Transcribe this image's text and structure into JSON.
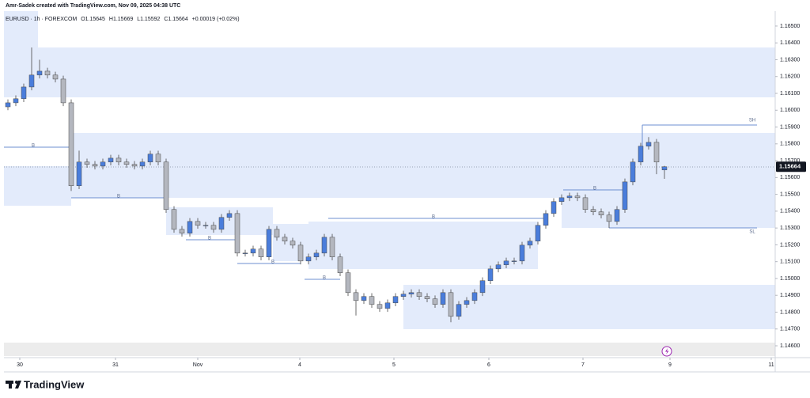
{
  "header": {
    "credit": "Amr-Sadek created with TradingView.com, Nov 09, 2025 04:38 UTC"
  },
  "footer": {
    "brand": "TradingView"
  },
  "chart_data": {
    "type": "candlestick",
    "legend": {
      "symbol": "EURUSD · 1h · FOREXCOM",
      "open": "O1.15645",
      "high": "H1.15669",
      "low": "L1.15592",
      "close": "C1.15664",
      "change": "+0.00019 (+0.02%)"
    },
    "up_color": "#4a7ddb",
    "down_color": "#b4b7bf",
    "outline_color": "#4a4a4a",
    "open": [
      1.1602,
      1.16044,
      1.16068,
      1.16138,
      1.16209,
      1.16232,
      1.16209,
      1.16185,
      1.16044,
      1.15551,
      1.15692,
      1.15678,
      1.15668,
      1.15692,
      1.15715,
      1.15692,
      1.15678,
      1.15668,
      1.15692,
      1.15739,
      1.15692,
      1.1541,
      1.15292,
      1.15269,
      1.15339,
      1.15316,
      1.15316,
      1.15292,
      1.15363,
      1.15386,
      1.15151,
      1.15151,
      1.15175,
      1.15128,
      1.15292,
      1.15245,
      1.15222,
      1.15198,
      1.15104,
      1.15128,
      1.15151,
      1.15245,
      1.15128,
      1.15034,
      1.14916,
      1.14869,
      1.14893,
      1.14846,
      1.14822,
      1.14855,
      1.14893,
      1.14907,
      1.14916,
      1.14893,
      1.14879,
      1.14846,
      1.14916,
      1.14775,
      1.14846,
      1.14869,
      1.14916,
      1.14987,
      1.15057,
      1.15081,
      1.15104,
      1.15104,
      1.15198,
      1.15222,
      1.15316,
      1.15386,
      1.15457,
      1.1548,
      1.1549,
      1.1548,
      1.1541,
      1.15396,
      1.15377,
      1.15339,
      1.1541,
      1.15574,
      1.15692,
      1.15786,
      1.15809,
      1.15645
    ],
    "high": [
      1.16064,
      1.16088,
      1.16158,
      1.16373,
      1.163,
      1.16252,
      1.16229,
      1.16205,
      1.16064,
      1.1576,
      1.15712,
      1.15698,
      1.15712,
      1.15735,
      1.15735,
      1.15712,
      1.15698,
      1.15712,
      1.15759,
      1.15759,
      1.15712,
      1.1543,
      1.15312,
      1.15359,
      1.15359,
      1.15336,
      1.15336,
      1.15383,
      1.15406,
      1.15406,
      1.15171,
      1.15195,
      1.15195,
      1.15312,
      1.15312,
      1.15265,
      1.15242,
      1.15218,
      1.15148,
      1.15171,
      1.15265,
      1.15265,
      1.15148,
      1.15054,
      1.14936,
      1.14913,
      1.14913,
      1.14866,
      1.14875,
      1.14913,
      1.14927,
      1.14936,
      1.14936,
      1.14913,
      1.14899,
      1.14936,
      1.14936,
      1.14866,
      1.14889,
      1.14936,
      1.15007,
      1.15077,
      1.15101,
      1.15124,
      1.15124,
      1.15218,
      1.15242,
      1.15336,
      1.15406,
      1.15477,
      1.155,
      1.1551,
      1.1551,
      1.155,
      1.1543,
      1.15416,
      1.15397,
      1.1543,
      1.15594,
      1.15712,
      1.15806,
      1.1584,
      1.15829,
      1.15669
    ],
    "low": [
      1.16,
      1.16024,
      1.16048,
      1.16118,
      1.16189,
      1.16189,
      1.16165,
      1.16024,
      1.1552,
      1.15531,
      1.15658,
      1.15648,
      1.15648,
      1.15672,
      1.15672,
      1.15658,
      1.15648,
      1.15648,
      1.15672,
      1.15672,
      1.1539,
      1.15272,
      1.15249,
      1.15249,
      1.15296,
      1.15296,
      1.15272,
      1.15272,
      1.15343,
      1.15131,
      1.15131,
      1.15131,
      1.15108,
      1.15108,
      1.15225,
      1.15202,
      1.15178,
      1.15084,
      1.15084,
      1.15108,
      1.15131,
      1.15108,
      1.15014,
      1.14896,
      1.1478,
      1.14849,
      1.14826,
      1.14802,
      1.14802,
      1.14835,
      1.14873,
      1.14887,
      1.14873,
      1.14859,
      1.14826,
      1.14826,
      1.1474,
      1.14755,
      1.14826,
      1.14849,
      1.14896,
      1.14967,
      1.15037,
      1.15061,
      1.15084,
      1.15084,
      1.15178,
      1.15202,
      1.15296,
      1.15366,
      1.15437,
      1.1546,
      1.1546,
      1.1539,
      1.15376,
      1.15357,
      1.153,
      1.15319,
      1.1539,
      1.15554,
      1.15672,
      1.15766,
      1.1562,
      1.15592
    ],
    "close": [
      1.16044,
      1.16068,
      1.16138,
      1.16209,
      1.16232,
      1.16209,
      1.16185,
      1.16044,
      1.15551,
      1.15692,
      1.15678,
      1.15668,
      1.15692,
      1.15715,
      1.15692,
      1.15678,
      1.15668,
      1.15692,
      1.15739,
      1.15692,
      1.1541,
      1.15292,
      1.15269,
      1.15339,
      1.15316,
      1.15316,
      1.15292,
      1.15363,
      1.15386,
      1.15151,
      1.15151,
      1.15175,
      1.15128,
      1.15292,
      1.15245,
      1.15222,
      1.15198,
      1.15104,
      1.15128,
      1.15151,
      1.15245,
      1.15128,
      1.15034,
      1.14916,
      1.14869,
      1.14893,
      1.14846,
      1.14822,
      1.14855,
      1.14893,
      1.14907,
      1.14916,
      1.14893,
      1.14879,
      1.14846,
      1.14916,
      1.14775,
      1.14846,
      1.14869,
      1.14916,
      1.14987,
      1.15057,
      1.15081,
      1.15104,
      1.15104,
      1.15198,
      1.15222,
      1.15316,
      1.15386,
      1.15457,
      1.1548,
      1.1549,
      1.1548,
      1.1541,
      1.15396,
      1.15377,
      1.15339,
      1.1541,
      1.15574,
      1.15692,
      1.15786,
      1.15809,
      1.15692,
      1.15664
    ],
    "ylim": [
      1.14539,
      1.16589
    ],
    "yticks": [
      {
        "value": 1.146,
        "label": "1.14600"
      },
      {
        "value": 1.147,
        "label": "1.14700"
      },
      {
        "value": 1.148,
        "label": "1.14800"
      },
      {
        "value": 1.149,
        "label": "1.14900"
      },
      {
        "value": 1.15,
        "label": "1.15000"
      },
      {
        "value": 1.151,
        "label": "1.15100"
      },
      {
        "value": 1.152,
        "label": "1.15200"
      },
      {
        "value": 1.153,
        "label": "1.15300"
      },
      {
        "value": 1.154,
        "label": "1.15400"
      },
      {
        "value": 1.155,
        "label": "1.15500"
      },
      {
        "value": 1.156,
        "label": "1.15600"
      },
      {
        "value": 1.157,
        "label": "1.15700"
      },
      {
        "value": 1.158,
        "label": "1.15800"
      },
      {
        "value": 1.159,
        "label": "1.15900"
      },
      {
        "value": 1.16,
        "label": "1.16000"
      },
      {
        "value": 1.161,
        "label": "1.16100"
      },
      {
        "value": 1.162,
        "label": "1.16200"
      },
      {
        "value": 1.163,
        "label": "1.16300"
      },
      {
        "value": 1.164,
        "label": "1.16400"
      },
      {
        "value": 1.165,
        "label": "1.16500"
      }
    ],
    "xlim": [
      0,
      97.5
    ],
    "xticks": [
      {
        "value": 2,
        "label": "30"
      },
      {
        "value": 14.1,
        "label": "31"
      },
      {
        "value": 24.5,
        "label": "Nov"
      },
      {
        "value": 37.4,
        "label": "4"
      },
      {
        "value": 49.3,
        "label": "5"
      },
      {
        "value": 61.3,
        "label": "6"
      },
      {
        "value": 73.2,
        "label": "7"
      },
      {
        "value": 84.2,
        "label": "9"
      },
      {
        "value": 97,
        "label": "11"
      }
    ],
    "annotations": [
      "B",
      "B",
      "B",
      "B",
      "B",
      "B",
      "B",
      "SH",
      "SL"
    ]
  }
}
